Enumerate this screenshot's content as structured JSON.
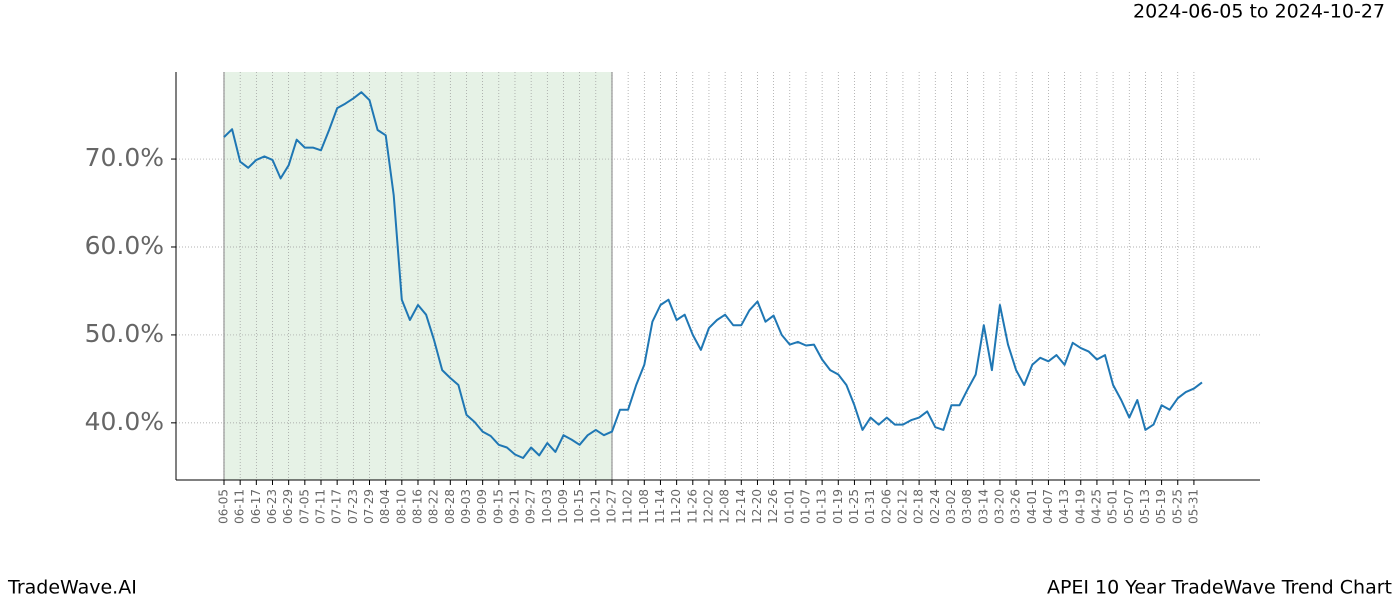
{
  "chart_data": {
    "type": "line",
    "date_range": "2024-06-05 to 2024-10-27",
    "brand": "TradeWave.AI",
    "caption": "APEI 10 Year TradeWave Trend Chart",
    "color": "#1f77b4",
    "grid": true,
    "highlight": [
      "06-05",
      "10-27"
    ],
    "highlight_color": "#e6f2e6",
    "categories": [
      "06-05",
      null,
      "06-11",
      null,
      "06-17",
      null,
      "06-23",
      null,
      "06-29",
      null,
      "07-05",
      null,
      "07-11",
      null,
      "07-17",
      null,
      "07-23",
      null,
      "07-29",
      null,
      "08-04",
      null,
      "08-10",
      null,
      "08-16",
      null,
      "08-22",
      null,
      "08-28",
      null,
      "09-03",
      null,
      "09-09",
      null,
      "09-15",
      null,
      "09-21",
      null,
      "09-27",
      null,
      "10-03",
      null,
      "10-09",
      null,
      "10-15",
      null,
      "10-21",
      null,
      "10-27",
      null,
      "11-02",
      null,
      "11-08",
      null,
      "11-14",
      null,
      "11-20",
      null,
      "11-26",
      null,
      "12-02",
      null,
      "12-08",
      null,
      "12-14",
      null,
      "12-20",
      null,
      "12-26",
      null,
      "01-01",
      null,
      "01-07",
      null,
      "01-13",
      null,
      "01-19",
      null,
      "01-25",
      null,
      "01-31",
      null,
      "02-06",
      null,
      "02-12",
      null,
      "02-18",
      null,
      "02-24",
      null,
      "03-02",
      null,
      "03-08",
      null,
      "03-14",
      null,
      "03-20",
      null,
      "03-26",
      null,
      "04-01",
      null,
      "04-07",
      null,
      "04-13",
      null,
      "04-19",
      null,
      "04-25",
      null,
      "05-01",
      null,
      "05-07",
      null,
      "05-13",
      null,
      "05-19",
      null,
      "05-25",
      null,
      "05-31",
      null
    ],
    "values": [
      72.5,
      73.4,
      69.7,
      69.0,
      69.9,
      70.3,
      69.9,
      67.8,
      69.3,
      72.2,
      71.3,
      71.3,
      71.0,
      73.3,
      75.8,
      76.3,
      76.9,
      77.6,
      76.7,
      73.3,
      72.7,
      65.9,
      54.0,
      51.7,
      53.4,
      52.3,
      49.4,
      46.0,
      45.1,
      44.3,
      40.9,
      40.1,
      39.0,
      38.5,
      37.5,
      37.2,
      36.4,
      36.0,
      37.2,
      36.3,
      37.7,
      36.7,
      38.6,
      38.1,
      37.5,
      38.6,
      39.2,
      38.6,
      39.0,
      41.5,
      41.5,
      44.3,
      46.6,
      51.5,
      53.4,
      54.0,
      51.7,
      52.3,
      50.0,
      48.3,
      50.8,
      51.7,
      52.3,
      51.1,
      51.1,
      52.8,
      53.8,
      51.5,
      52.2,
      50.0,
      48.9,
      49.2,
      48.8,
      48.9,
      47.2,
      46.0,
      45.5,
      44.3,
      42.0,
      39.2,
      40.6,
      39.8,
      40.6,
      39.8,
      39.8,
      40.3,
      40.6,
      41.3,
      39.5,
      39.2,
      42.0,
      42.0,
      43.8,
      45.5,
      51.1,
      46.0,
      53.4,
      48.9,
      46.0,
      44.3,
      46.6,
      47.4,
      47.0,
      47.7,
      46.6,
      49.1,
      48.5,
      48.1,
      47.2,
      47.7,
      44.3,
      42.6,
      40.6,
      42.6,
      39.2,
      39.8,
      42.0,
      41.5,
      42.8,
      43.5,
      43.9,
      44.6
    ],
    "ylim": [
      33.5,
      79.9
    ],
    "yticks": [
      {
        "value": 40,
        "label": "40.0%"
      },
      {
        "value": 50,
        "label": "50.0%"
      },
      {
        "value": 60,
        "label": "60.0%"
      },
      {
        "value": 70,
        "label": "70.0%"
      }
    ]
  }
}
